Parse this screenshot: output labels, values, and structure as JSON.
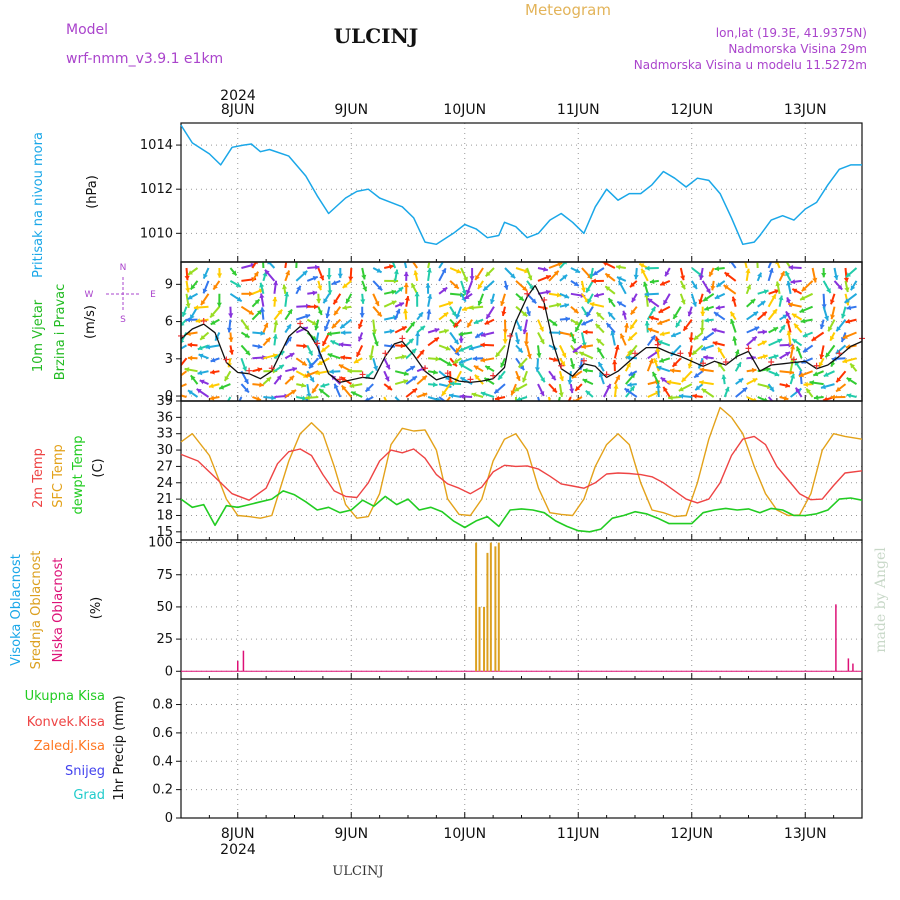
{
  "header": {
    "model_label": "Model",
    "model_value": "wrf-nmm_v3.9.1 e1km",
    "station": "ULCINJ",
    "meteogram": "Meteogram",
    "lonlat": "lon,lat (19.3E, 41.9375N)",
    "elevation": "Nadmorska Visina 29m",
    "model_elevation": "Nadmorska Visina u modelu 11.5272m"
  },
  "footer": {
    "station": "ULCINJ",
    "credit": "made by Angel"
  },
  "time_axis": {
    "days": [
      "8JUN",
      "9JUN",
      "10JUN",
      "11JUN",
      "12JUN",
      "13JUN"
    ],
    "year": "2024",
    "start_day": 7.5,
    "end_day": 13.5
  },
  "colors": {
    "pressure": "#1aa7e8",
    "temp2m": "#ee4444",
    "sfc_temp": "#e3a21a",
    "dewpt": "#22cc22",
    "cloud_high": "#1aa7e8",
    "cloud_mid": "#dca020",
    "cloud_low": "#dd1177",
    "precip_total": "#22cc22",
    "precip_conv": "#ee4444",
    "precip_frz": "#ff7722",
    "snow": "#4444ee",
    "graupel": "#22cccc",
    "wind_labels": "#22bb22",
    "compass": "#aa44cc"
  },
  "panels": {
    "pressure": {
      "label": "Pritisak na nivou mora",
      "unit": "(hPa)"
    },
    "wind": {
      "label1": "10m Vjetar",
      "label2": "Brzina i Pravac",
      "unit": "(m/s)",
      "compass": {
        "n": "N",
        "s": "S",
        "e": "E",
        "w": "W"
      }
    },
    "temp": {
      "label_2m": "2m Temp",
      "label_sfc": "SFC Temp",
      "label_dew": "dewpt Temp",
      "unit": "(C)"
    },
    "cloud": {
      "label_high": "Visoka Oblacnost",
      "label_mid": "Srednja Oblacnost",
      "label_low": "Niska Oblacnost",
      "unit": "(%)"
    },
    "precip": {
      "label_total": "Ukupna Kisa",
      "label_conv": "Konvek.Kisa",
      "label_frz": "Zaledj.Kisa",
      "label_snow": "Snijeg",
      "label_grad": "Grad",
      "unit": "1hr Precip (mm)"
    }
  },
  "chart_data": [
    {
      "type": "line",
      "title": "Pritisak na nivou mora",
      "ylabel": "(hPa)",
      "ylim": [
        1008.7,
        1015.0
      ],
      "yticks": [
        1010,
        1012,
        1014
      ],
      "x_unit": "day of June 2024",
      "series": [
        {
          "name": "Pritisak na nivou mora",
          "x": [
            7.5,
            7.6,
            7.75,
            7.85,
            7.95,
            8.05,
            8.12,
            8.2,
            8.28,
            8.45,
            8.6,
            8.7,
            8.8,
            8.95,
            9.05,
            9.15,
            9.25,
            9.45,
            9.55,
            9.65,
            9.75,
            9.9,
            10.0,
            10.1,
            10.2,
            10.3,
            10.35,
            10.45,
            10.55,
            10.65,
            10.75,
            10.85,
            10.95,
            11.05,
            11.15,
            11.25,
            11.35,
            11.45,
            11.55,
            11.65,
            11.75,
            11.85,
            11.95,
            12.05,
            12.15,
            12.25,
            12.35,
            12.45,
            12.55,
            12.6,
            12.7,
            12.8,
            12.9,
            13.0,
            13.1,
            13.2,
            13.3,
            13.4,
            13.5
          ],
          "y": [
            1014.9,
            1014.1,
            1013.6,
            1013.1,
            1013.9,
            1014.0,
            1014.05,
            1013.7,
            1013.8,
            1013.5,
            1012.6,
            1011.7,
            1010.9,
            1011.6,
            1011.9,
            1012.0,
            1011.6,
            1011.2,
            1010.7,
            1009.6,
            1009.5,
            1010.0,
            1010.4,
            1010.2,
            1009.8,
            1009.9,
            1010.5,
            1010.3,
            1009.8,
            1010.0,
            1010.6,
            1010.9,
            1010.5,
            1010.0,
            1011.2,
            1012.0,
            1011.5,
            1011.8,
            1011.8,
            1012.2,
            1012.8,
            1012.5,
            1012.1,
            1012.5,
            1012.4,
            1011.8,
            1010.7,
            1009.5,
            1009.6,
            1009.9,
            1010.6,
            1010.8,
            1010.6,
            1011.1,
            1011.4,
            1012.2,
            1012.9,
            1013.1,
            1013.1
          ]
        }
      ]
    },
    {
      "type": "line",
      "title": "10m Vjetar Brzina i Pravac",
      "ylabel": "(m/s)",
      "ylim": [
        -0.4,
        10.8
      ],
      "yticks": [
        0,
        3,
        6,
        9
      ],
      "series": [
        {
          "name": "10m Vjetar",
          "x": [
            7.5,
            7.6,
            7.7,
            7.8,
            7.9,
            8.0,
            8.1,
            8.2,
            8.3,
            8.45,
            8.55,
            8.62,
            8.7,
            8.8,
            8.9,
            9.0,
            9.1,
            9.2,
            9.3,
            9.38,
            9.45,
            9.55,
            9.65,
            9.75,
            9.85,
            9.95,
            10.05,
            10.15,
            10.25,
            10.35,
            10.4,
            10.45,
            10.55,
            10.62,
            10.7,
            10.78,
            10.85,
            10.95,
            11.05,
            11.15,
            11.25,
            11.35,
            11.5,
            11.6,
            11.7,
            11.8,
            11.9,
            12.0,
            12.1,
            12.2,
            12.3,
            12.4,
            12.5,
            12.6,
            12.7,
            12.8,
            12.9,
            13.0,
            13.1,
            13.2,
            13.3,
            13.4,
            13.5
          ],
          "y": [
            4.6,
            5.4,
            5.8,
            5.1,
            2.7,
            1.9,
            1.8,
            1.4,
            2.0,
            4.8,
            5.6,
            5.2,
            4.0,
            1.8,
            1.1,
            1.3,
            1.5,
            1.4,
            3.2,
            4.2,
            4.4,
            3.3,
            2.0,
            1.3,
            1.6,
            1.2,
            1.1,
            1.2,
            1.4,
            2.3,
            4.6,
            6.0,
            8.0,
            8.9,
            7.5,
            4.2,
            2.2,
            1.6,
            2.6,
            2.4,
            1.5,
            2.0,
            3.2,
            3.9,
            3.9,
            3.5,
            3.2,
            2.8,
            2.4,
            2.8,
            2.5,
            3.2,
            3.6,
            2.0,
            2.5,
            2.6,
            2.7,
            2.8,
            2.2,
            2.5,
            3.2,
            4.0,
            4.4
          ]
        }
      ]
    },
    {
      "type": "line",
      "title": "2m Temp / SFC Temp / dewpt Temp",
      "ylabel": "(C)",
      "ylim": [
        13.5,
        39.0
      ],
      "yticks": [
        15,
        18,
        21,
        24,
        27,
        30,
        33,
        36,
        39
      ],
      "series": [
        {
          "name": "2m Temp",
          "x": [
            7.5,
            7.65,
            7.8,
            7.95,
            8.1,
            8.25,
            8.35,
            8.45,
            8.55,
            8.65,
            8.75,
            8.85,
            8.95,
            9.05,
            9.15,
            9.25,
            9.35,
            9.45,
            9.55,
            9.65,
            9.75,
            9.85,
            9.95,
            10.05,
            10.15,
            10.25,
            10.35,
            10.45,
            10.55,
            10.65,
            10.75,
            10.85,
            10.95,
            11.05,
            11.15,
            11.25,
            11.35,
            11.45,
            11.55,
            11.65,
            11.75,
            11.85,
            11.95,
            12.05,
            12.15,
            12.25,
            12.35,
            12.45,
            12.55,
            12.65,
            12.75,
            12.85,
            12.95,
            13.05,
            13.15,
            13.25,
            13.35,
            13.5
          ],
          "y": [
            29.2,
            28.0,
            25.0,
            22.0,
            20.8,
            23.0,
            27.5,
            29.7,
            30.2,
            29.0,
            25.5,
            22.5,
            21.5,
            21.3,
            24.0,
            28.0,
            30.0,
            29.5,
            30.2,
            28.5,
            25.5,
            23.8,
            23.0,
            22.0,
            23.2,
            26.0,
            27.2,
            27.0,
            27.1,
            26.5,
            25.2,
            23.8,
            23.4,
            23.0,
            24.0,
            25.6,
            25.8,
            25.7,
            25.5,
            25.1,
            24.0,
            22.5,
            21.0,
            20.3,
            21.0,
            24.0,
            29.0,
            32.0,
            32.5,
            31.0,
            27.0,
            24.5,
            22.0,
            20.9,
            21.0,
            23.5,
            25.8,
            26.2
          ]
        },
        {
          "name": "SFC Temp",
          "x": [
            7.5,
            7.6,
            7.75,
            7.9,
            8.0,
            8.1,
            8.2,
            8.3,
            8.45,
            8.55,
            8.65,
            8.75,
            8.85,
            8.95,
            9.05,
            9.15,
            9.25,
            9.35,
            9.45,
            9.55,
            9.65,
            9.75,
            9.85,
            9.95,
            10.05,
            10.15,
            10.25,
            10.35,
            10.45,
            10.55,
            10.65,
            10.75,
            10.85,
            10.95,
            11.05,
            11.15,
            11.25,
            11.35,
            11.45,
            11.55,
            11.65,
            11.75,
            11.85,
            11.95,
            12.05,
            12.15,
            12.25,
            12.35,
            12.45,
            12.55,
            12.65,
            12.75,
            12.85,
            12.95,
            13.05,
            13.15,
            13.25,
            13.35,
            13.5
          ],
          "y": [
            31.5,
            33.0,
            29.0,
            21.0,
            18.0,
            17.8,
            17.5,
            18.0,
            28.0,
            33.0,
            35.0,
            33.0,
            27.0,
            20.0,
            17.5,
            17.8,
            22.0,
            31.0,
            34.0,
            33.5,
            33.7,
            30.0,
            21.0,
            18.2,
            18.0,
            21.0,
            28.0,
            32.0,
            33.0,
            30.0,
            23.0,
            18.5,
            18.2,
            18.0,
            21.0,
            27.0,
            31.0,
            33.0,
            31.0,
            24.0,
            19.0,
            18.5,
            17.8,
            18.0,
            24.0,
            32.0,
            37.8,
            36.0,
            33.0,
            27.0,
            22.0,
            19.0,
            18.0,
            18.1,
            22.0,
            30.0,
            33.0,
            32.5,
            32.0
          ]
        },
        {
          "name": "dewpt Temp",
          "x": [
            7.5,
            7.6,
            7.7,
            7.8,
            7.9,
            8.0,
            8.1,
            8.2,
            8.3,
            8.4,
            8.5,
            8.6,
            8.7,
            8.8,
            8.9,
            9.0,
            9.1,
            9.2,
            9.3,
            9.4,
            9.5,
            9.6,
            9.7,
            9.8,
            9.9,
            10.0,
            10.1,
            10.2,
            10.3,
            10.4,
            10.5,
            10.6,
            10.7,
            10.8,
            10.9,
            11.0,
            11.1,
            11.2,
            11.3,
            11.4,
            11.5,
            11.6,
            11.7,
            11.8,
            11.9,
            12.0,
            12.1,
            12.2,
            12.3,
            12.4,
            12.5,
            12.6,
            12.7,
            12.8,
            12.9,
            13.0,
            13.1,
            13.2,
            13.3,
            13.4,
            13.5
          ],
          "y": [
            21.0,
            19.5,
            20.0,
            16.2,
            19.8,
            19.5,
            20.0,
            20.5,
            21.0,
            22.5,
            21.8,
            20.5,
            19.0,
            19.5,
            18.5,
            19.0,
            20.8,
            19.7,
            21.5,
            20.0,
            21.0,
            19.0,
            19.5,
            18.7,
            17.0,
            15.8,
            17.0,
            17.8,
            16.0,
            19.0,
            19.2,
            19.0,
            18.5,
            17.0,
            16.0,
            15.2,
            15.0,
            15.5,
            17.5,
            18.0,
            18.7,
            18.3,
            17.5,
            16.5,
            16.5,
            16.5,
            18.5,
            19.0,
            19.3,
            19.0,
            19.2,
            18.5,
            19.3,
            19.0,
            18.0,
            18.0,
            18.3,
            19.0,
            21.0,
            21.2,
            20.8
          ]
        }
      ]
    },
    {
      "type": "bar",
      "title": "Visoka / Srednja / Niska Oblacnost",
      "ylabel": "(%)",
      "ylim": [
        -6,
        102
      ],
      "yticks": [
        0,
        25,
        50,
        75,
        100
      ],
      "series": [
        {
          "name": "Srednja Oblacnost",
          "x": [
            10.1,
            10.13,
            10.17,
            10.2,
            10.23,
            10.27,
            10.3
          ],
          "y": [
            100,
            50,
            50,
            92,
            100,
            97,
            100
          ]
        },
        {
          "name": "Niska Oblacnost",
          "x": [
            8.0,
            8.05,
            13.27,
            13.38,
            13.42
          ],
          "y": [
            8,
            16,
            52,
            10,
            6
          ]
        }
      ]
    },
    {
      "type": "bar",
      "title": "1hr Precip",
      "ylabel": "1hr Precip (mm)",
      "ylim": [
        0,
        0.98
      ],
      "yticks": [
        0,
        0.2,
        0.4,
        0.6,
        0.8
      ],
      "series": []
    }
  ]
}
